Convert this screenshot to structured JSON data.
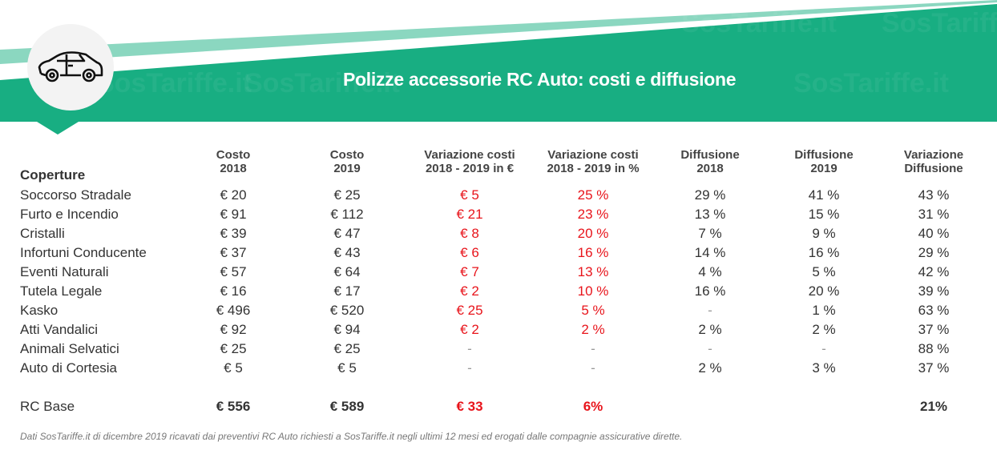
{
  "title": "Polizze accessorie  RC Auto: costi e diffusione",
  "watermark": "SosTariffe.it",
  "colors": {
    "green": "#18ae82",
    "light_green": "#8bd7c0",
    "red": "#e8141b"
  },
  "icon": "car-icon",
  "chart_data": {
    "type": "table",
    "title": "Polizze accessorie  RC Auto: costi e diffusione",
    "row_header": "Coperture",
    "columns": [
      [
        "Costo",
        "2018"
      ],
      [
        "Costo",
        "2019"
      ],
      [
        "Variazione costi",
        "2018 - 2019 in €"
      ],
      [
        "Variazione costi",
        "2018 - 2019 in %"
      ],
      [
        "Diffusione",
        "2018"
      ],
      [
        "Diffusione",
        "2019"
      ],
      [
        "Variazione",
        "Diffusione"
      ]
    ],
    "rows": [
      {
        "name": "Soccorso Stradale",
        "values": [
          "€ 20",
          "€ 25",
          "€ 5",
          "25 %",
          "29 %",
          "41 %",
          "43 %"
        ]
      },
      {
        "name": "Furto e Incendio",
        "values": [
          "€ 91",
          "€ 112",
          "€ 21",
          "23 %",
          "13 %",
          "15 %",
          "31 %"
        ]
      },
      {
        "name": "Cristalli",
        "values": [
          "€ 39",
          "€ 47",
          "€ 8",
          "20 %",
          "7 %",
          "9 %",
          "40 %"
        ]
      },
      {
        "name": "Infortuni Conducente",
        "values": [
          "€ 37",
          "€ 43",
          "€ 6",
          "16 %",
          "14 %",
          "16 %",
          "29 %"
        ]
      },
      {
        "name": "Eventi Naturali",
        "values": [
          "€ 57",
          "€ 64",
          "€ 7",
          "13 %",
          "4 %",
          "5 %",
          "42 %"
        ]
      },
      {
        "name": "Tutela Legale",
        "values": [
          "€ 16",
          "€ 17",
          "€ 2",
          "10 %",
          "16 %",
          "20 %",
          "39 %"
        ]
      },
      {
        "name": "Kasko",
        "values": [
          "€ 496",
          "€ 520",
          "€ 25",
          "5 %",
          "-",
          "1 %",
          "63 %"
        ]
      },
      {
        "name": "Atti Vandalici",
        "values": [
          "€ 92",
          "€ 94",
          "€ 2",
          "2 %",
          "2 %",
          "2 %",
          "37 %"
        ]
      },
      {
        "name": "Animali Selvatici",
        "values": [
          "€ 25",
          "€ 25",
          "-",
          "-",
          "-",
          "-",
          "88 %"
        ]
      },
      {
        "name": "Auto di Cortesia",
        "values": [
          "€ 5",
          "€ 5",
          "-",
          "-",
          "2 %",
          "3 %",
          "37 %"
        ]
      }
    ],
    "total": {
      "name": "RC Base",
      "values": [
        "€ 556",
        "€ 589",
        "€ 33",
        "6%",
        "",
        "",
        "21%"
      ]
    }
  },
  "footnote": "Dati SosTariffe.it di dicembre 2019 ricavati dai preventivi RC Auto richiesti a SosTariffe.it negli ultimi 12 mesi ed erogati dalle compagnie assicurative dirette."
}
